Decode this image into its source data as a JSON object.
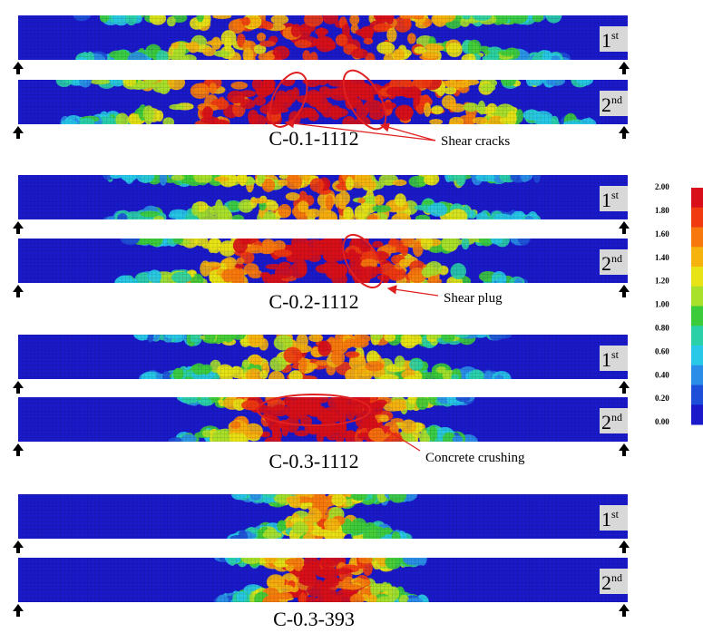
{
  "panels": [
    {
      "label": "C-0.1-1112",
      "beams": [
        {
          "ordinal": "1",
          "suffix": "st"
        },
        {
          "ordinal": "2",
          "suffix": "nd"
        }
      ]
    },
    {
      "label": "C-0.2-1112",
      "beams": [
        {
          "ordinal": "1",
          "suffix": "st"
        },
        {
          "ordinal": "2",
          "suffix": "nd"
        }
      ]
    },
    {
      "label": "C-0.3-1112",
      "beams": [
        {
          "ordinal": "1",
          "suffix": "st"
        },
        {
          "ordinal": "2",
          "suffix": "nd"
        }
      ]
    },
    {
      "label": "C-0.3-393",
      "beams": [
        {
          "ordinal": "1",
          "suffix": "st"
        },
        {
          "ordinal": "2",
          "suffix": "nd"
        }
      ]
    }
  ],
  "annotations": [
    {
      "text": "Shear cracks"
    },
    {
      "text": "Shear plug"
    },
    {
      "text": "Concrete crushing"
    }
  ],
  "colorbar": {
    "ticks": [
      "2.00",
      "1.80",
      "1.60",
      "1.40",
      "1.20",
      "1.00",
      "0.80",
      "0.60",
      "0.40",
      "0.20",
      "0.00"
    ]
  }
}
